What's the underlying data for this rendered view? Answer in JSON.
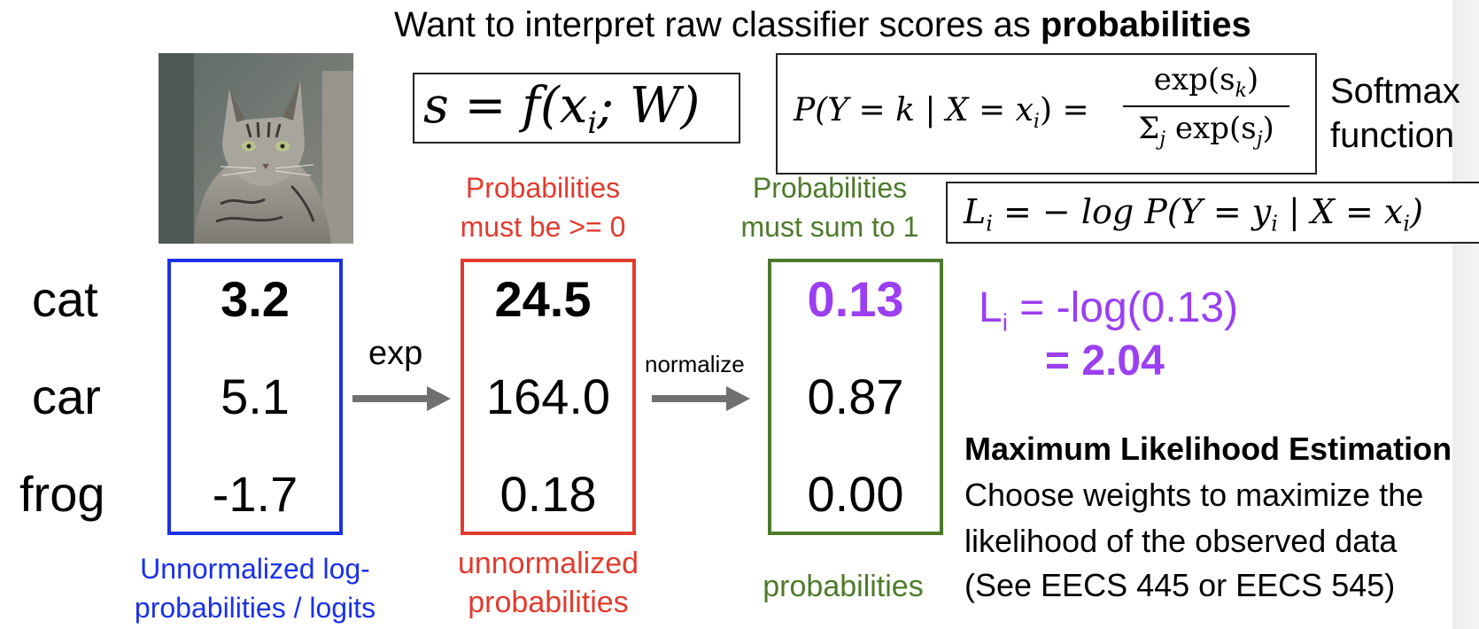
{
  "title": {
    "prefix": "Want to interpret raw classifier scores as ",
    "emph": "probabilities"
  },
  "equations": {
    "score": "s = f(x",
    "score_sub": "i",
    "score_tail": "; W)",
    "softmax_lhs": "P(Y = k | X = x",
    "softmax_lhs_sub": "i",
    "softmax_lhs_tail": ") =",
    "softmax_num": "exp(s",
    "softmax_num_sub": "k",
    "softmax_num_tail": ")",
    "softmax_den": "Σ",
    "softmax_den_sub": "j",
    "softmax_den_tail": " exp(s",
    "softmax_den_sub2": "j",
    "softmax_den_tail2": ")",
    "loss_lhs": "L",
    "loss_lhs_sub": "i",
    "loss_mid": " = − log P(Y = y",
    "loss_mid_sub": "i",
    "loss_tail": " | X = x",
    "loss_tail_sub": "i",
    "loss_end": ")"
  },
  "softmax_caption": [
    "Softmax",
    "function"
  ],
  "classes": [
    "cat",
    "car",
    "frog"
  ],
  "columns": {
    "logits": {
      "values": [
        "3.2",
        "5.1",
        "-1.7"
      ],
      "caption": [
        "Unnormalized log-",
        "probabilities / logits"
      ],
      "color": "#1a31e8"
    },
    "exp": {
      "header": [
        "Probabilities",
        "must be >= 0"
      ],
      "values": [
        "24.5",
        "164.0",
        "0.18"
      ],
      "caption": [
        "unnormalized",
        "probabilities"
      ],
      "color": "#e23b2e"
    },
    "prob": {
      "header": [
        "Probabilities",
        "must sum to 1"
      ],
      "values": [
        "0.13",
        "0.87",
        "0.00"
      ],
      "caption": [
        "probabilities"
      ],
      "color": "#4d7a2a"
    }
  },
  "arrows": {
    "exp_label": "exp",
    "normalize_label": "normalize",
    "color": "#707070"
  },
  "loss_result": {
    "lhs": "L",
    "lhs_sub": "i",
    "expr": " = -log(0.13)",
    "result": "= 2.04",
    "color": "#9b3ff2"
  },
  "mle": {
    "title": "Maximum Likelihood Estimation",
    "lines": [
      "Choose weights to maximize the",
      "likelihood of the observed data",
      "(See EECS 445 or EECS 545)"
    ]
  },
  "image": {
    "name": "cat photo"
  }
}
